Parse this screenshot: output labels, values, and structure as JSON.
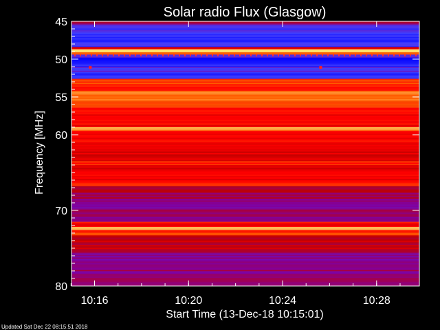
{
  "footer": {
    "updated_text": "Updated Sat Dec 22 08:15:51 2018"
  },
  "colors": {
    "background": "#000000",
    "text": "#ffffff",
    "colormap": [
      "#000080",
      "#0000ff",
      "#4040ff",
      "#8000a0",
      "#c00000",
      "#ff0000",
      "#ff6000",
      "#ffa040",
      "#ffff80"
    ]
  },
  "chart_data": {
    "type": "heatmap",
    "title": "Solar radio Flux (Glasgow)",
    "xlabel": "Start Time (13-Dec-18 10:15:01)",
    "ylabel": "Frequency [MHz]",
    "xlim_minutes_after_start": [
      0,
      14.8
    ],
    "ylim_mhz": [
      45,
      80
    ],
    "y_axis_reversed": true,
    "xticks": [
      {
        "label": "10:16",
        "minutes_after_start": 0.98
      },
      {
        "label": "10:20",
        "minutes_after_start": 4.98
      },
      {
        "label": "10:24",
        "minutes_after_start": 8.98
      },
      {
        "label": "10:28",
        "minutes_after_start": 12.98
      }
    ],
    "yticks": [
      {
        "label": "45",
        "value": 45
      },
      {
        "label": "50",
        "value": 50
      },
      {
        "label": "55",
        "value": 55
      },
      {
        "label": "60",
        "value": 60
      },
      {
        "label": "70",
        "value": 70
      },
      {
        "label": "80",
        "value": 80
      }
    ],
    "frequency_bands": [
      {
        "from": 45.0,
        "to": 45.4,
        "level": 0.45
      },
      {
        "from": 45.4,
        "to": 46.5,
        "level": 0.25
      },
      {
        "from": 46.5,
        "to": 48.4,
        "level": 0.22
      },
      {
        "from": 48.4,
        "to": 48.7,
        "level": 0.55
      },
      {
        "from": 48.7,
        "to": 49.1,
        "level": 0.98
      },
      {
        "from": 49.1,
        "to": 49.4,
        "level": 0.7
      },
      {
        "from": 49.4,
        "to": 49.8,
        "level": 0.3
      },
      {
        "from": 49.8,
        "to": 51.0,
        "level": 0.18
      },
      {
        "from": 51.0,
        "to": 51.7,
        "level": 0.28
      },
      {
        "from": 51.7,
        "to": 52.6,
        "level": 0.2
      },
      {
        "from": 52.6,
        "to": 53.3,
        "level": 0.72
      },
      {
        "from": 53.3,
        "to": 54.2,
        "level": 0.66
      },
      {
        "from": 54.2,
        "to": 55.6,
        "level": 0.8
      },
      {
        "from": 55.6,
        "to": 56.4,
        "level": 0.74
      },
      {
        "from": 56.4,
        "to": 58.5,
        "level": 0.62
      },
      {
        "from": 58.5,
        "to": 59.0,
        "level": 0.6
      },
      {
        "from": 59.0,
        "to": 59.5,
        "level": 0.85
      },
      {
        "from": 59.5,
        "to": 61.5,
        "level": 0.6
      },
      {
        "from": 61.5,
        "to": 63.5,
        "level": 0.56
      },
      {
        "from": 63.5,
        "to": 64.0,
        "level": 0.66
      },
      {
        "from": 64.0,
        "to": 66.0,
        "level": 0.58
      },
      {
        "from": 66.0,
        "to": 66.8,
        "level": 0.67
      },
      {
        "from": 66.8,
        "to": 68.5,
        "level": 0.45
      },
      {
        "from": 68.5,
        "to": 71.5,
        "level": 0.4
      },
      {
        "from": 71.5,
        "to": 72.2,
        "level": 0.62
      },
      {
        "from": 72.2,
        "to": 72.6,
        "level": 0.95
      },
      {
        "from": 72.6,
        "to": 73.3,
        "level": 0.7
      },
      {
        "from": 73.3,
        "to": 75.5,
        "level": 0.5
      },
      {
        "from": 75.5,
        "to": 77.5,
        "level": 0.38
      },
      {
        "from": 77.5,
        "to": 80.0,
        "level": 0.42
      }
    ],
    "interference_spots": [
      {
        "minutes_after_start": 0.8,
        "mhz": 51.1
      },
      {
        "minutes_after_start": 10.6,
        "mhz": 51.1
      }
    ]
  }
}
